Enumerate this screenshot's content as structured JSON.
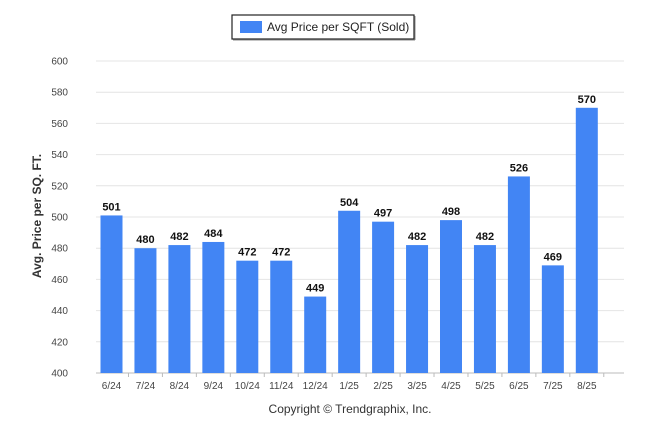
{
  "chart_data": {
    "type": "bar",
    "categories": [
      "6/24",
      "7/24",
      "8/24",
      "9/24",
      "10/24",
      "11/24",
      "12/24",
      "1/25",
      "2/25",
      "3/25",
      "4/25",
      "5/25",
      "6/25",
      "7/25",
      "8/25"
    ],
    "series": [
      {
        "name": "Avg Price per SQFT (Sold)",
        "values": [
          501,
          480,
          482,
          484,
          472,
          472,
          449,
          504,
          497,
          482,
          498,
          482,
          526,
          469,
          570
        ],
        "color": "#4285f4"
      }
    ],
    "title": "",
    "xlabel": "",
    "ylabel": "Avg. Price per SQ. FT.",
    "ylim": [
      400,
      600
    ],
    "yticks": [
      400,
      420,
      440,
      460,
      480,
      500,
      520,
      540,
      560,
      580,
      600
    ],
    "grid": true,
    "legend_position": "top-center",
    "data_labels": true
  },
  "footer": {
    "copyright": "Copyright © Trendgraphix, Inc."
  }
}
